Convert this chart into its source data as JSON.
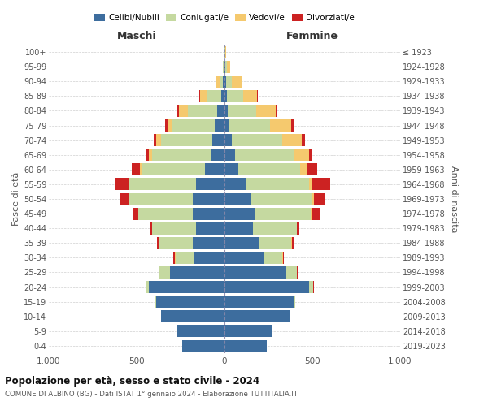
{
  "age_groups": [
    "0-4",
    "5-9",
    "10-14",
    "15-19",
    "20-24",
    "25-29",
    "30-34",
    "35-39",
    "40-44",
    "45-49",
    "50-54",
    "55-59",
    "60-64",
    "65-69",
    "70-74",
    "75-79",
    "80-84",
    "85-89",
    "90-94",
    "95-99",
    "100+"
  ],
  "birth_years": [
    "2019-2023",
    "2014-2018",
    "2009-2013",
    "2004-2008",
    "1999-2003",
    "1994-1998",
    "1989-1993",
    "1984-1988",
    "1979-1983",
    "1974-1978",
    "1969-1973",
    "1964-1968",
    "1959-1963",
    "1954-1958",
    "1949-1953",
    "1944-1948",
    "1939-1943",
    "1934-1938",
    "1929-1933",
    "1924-1928",
    "≤ 1923"
  ],
  "male_celibi": [
    240,
    270,
    360,
    390,
    430,
    310,
    170,
    180,
    160,
    180,
    180,
    160,
    110,
    80,
    70,
    55,
    40,
    20,
    8,
    3,
    2
  ],
  "male_coniugati": [
    0,
    0,
    3,
    5,
    20,
    60,
    110,
    190,
    250,
    310,
    360,
    380,
    360,
    330,
    290,
    240,
    170,
    80,
    20,
    5,
    2
  ],
  "male_vedovi": [
    0,
    0,
    0,
    0,
    0,
    2,
    1,
    2,
    2,
    3,
    3,
    5,
    10,
    20,
    30,
    30,
    50,
    40,
    20,
    3,
    0
  ],
  "male_divorziati": [
    0,
    0,
    0,
    0,
    0,
    5,
    10,
    10,
    15,
    30,
    50,
    80,
    50,
    20,
    15,
    15,
    10,
    5,
    2,
    0,
    0
  ],
  "female_celibi": [
    240,
    270,
    370,
    400,
    480,
    350,
    220,
    200,
    160,
    170,
    150,
    120,
    80,
    60,
    40,
    30,
    20,
    15,
    10,
    5,
    2
  ],
  "female_coniugati": [
    0,
    0,
    3,
    5,
    25,
    60,
    110,
    180,
    250,
    320,
    350,
    360,
    350,
    340,
    290,
    230,
    160,
    90,
    30,
    8,
    2
  ],
  "female_vedovi": [
    0,
    0,
    0,
    0,
    1,
    1,
    2,
    2,
    3,
    8,
    10,
    20,
    40,
    80,
    110,
    120,
    110,
    80,
    60,
    20,
    3
  ],
  "female_divorziati": [
    0,
    0,
    0,
    0,
    2,
    5,
    5,
    10,
    15,
    50,
    60,
    100,
    60,
    20,
    20,
    15,
    10,
    5,
    3,
    0,
    0
  ],
  "colors": {
    "celibi": "#3d6d9e",
    "coniugati": "#c5d9a0",
    "vedovi": "#f5c96e",
    "divorziati": "#cc2222"
  },
  "title1": "Popolazione per età, sesso e stato civile - 2024",
  "title2": "COMUNE DI ALBINO (BG) - Dati ISTAT 1° gennaio 2024 - Elaborazione TUTTITALIA.IT",
  "xlabel_left": "Maschi",
  "xlabel_right": "Femmine",
  "ylabel_left": "Fasce di età",
  "ylabel_right": "Anni di nascita",
  "xlim": 1000,
  "background_color": "#ffffff",
  "grid_color": "#cccccc"
}
